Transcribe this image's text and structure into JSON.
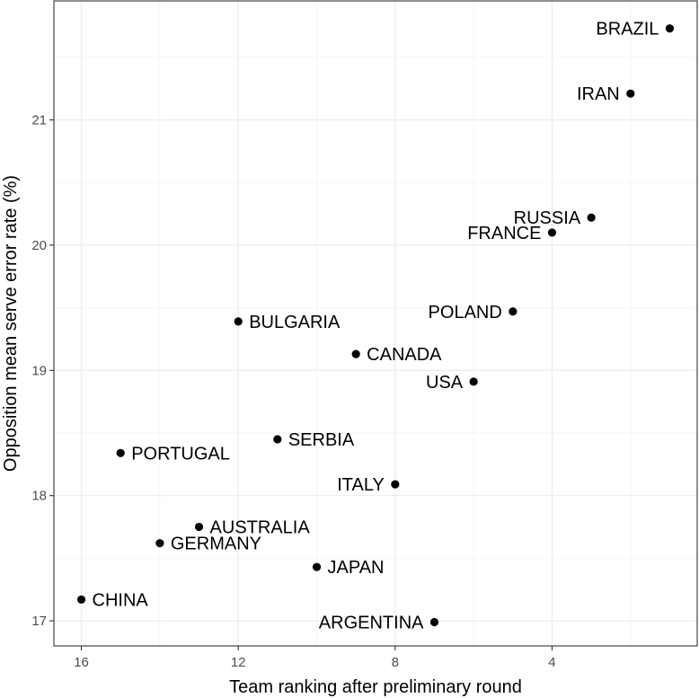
{
  "chart_data": {
    "type": "scatter",
    "xlabel": "Team ranking after preliminary round",
    "ylabel": "Opposition mean serve error rate (%)",
    "x_reversed": true,
    "xlim": [
      16.7,
      0.3
    ],
    "ylim": [
      16.8,
      21.95
    ],
    "x_ticks": [
      {
        "value": 16,
        "label": "16"
      },
      {
        "value": 12,
        "label": "12"
      },
      {
        "value": 8,
        "label": "8"
      },
      {
        "value": 4,
        "label": "4"
      }
    ],
    "y_ticks": [
      {
        "value": 17,
        "label": "17"
      },
      {
        "value": 18,
        "label": "18"
      },
      {
        "value": 19,
        "label": "19"
      },
      {
        "value": 20,
        "label": "20"
      },
      {
        "value": 21,
        "label": "21"
      }
    ],
    "grid": true,
    "theme": "bw",
    "point_color": "#000000",
    "points": [
      {
        "label": "BRAZIL",
        "x": 1,
        "y": 21.73,
        "label_side": "left"
      },
      {
        "label": "IRAN",
        "x": 2,
        "y": 21.21,
        "label_side": "left"
      },
      {
        "label": "RUSSIA",
        "x": 3,
        "y": 20.22,
        "label_side": "left"
      },
      {
        "label": "FRANCE",
        "x": 4,
        "y": 20.1,
        "label_side": "left"
      },
      {
        "label": "POLAND",
        "x": 5,
        "y": 19.47,
        "label_side": "left"
      },
      {
        "label": "USA",
        "x": 6,
        "y": 18.91,
        "label_side": "left"
      },
      {
        "label": "ARGENTINA",
        "x": 7,
        "y": 16.99,
        "label_side": "left"
      },
      {
        "label": "ITALY",
        "x": 8,
        "y": 18.09,
        "label_side": "left"
      },
      {
        "label": "CANADA",
        "x": 9,
        "y": 19.13,
        "label_side": "right"
      },
      {
        "label": "JAPAN",
        "x": 10,
        "y": 17.43,
        "label_side": "right"
      },
      {
        "label": "SERBIA",
        "x": 11,
        "y": 18.45,
        "label_side": "right"
      },
      {
        "label": "BULGARIA",
        "x": 12,
        "y": 19.39,
        "label_side": "right"
      },
      {
        "label": "AUSTRALIA",
        "x": 13,
        "y": 17.75,
        "label_side": "right"
      },
      {
        "label": "GERMANY",
        "x": 14,
        "y": 17.62,
        "label_side": "right"
      },
      {
        "label": "PORTUGAL",
        "x": 15,
        "y": 18.34,
        "label_side": "right"
      },
      {
        "label": "CHINA",
        "x": 16,
        "y": 17.17,
        "label_side": "right"
      }
    ]
  }
}
